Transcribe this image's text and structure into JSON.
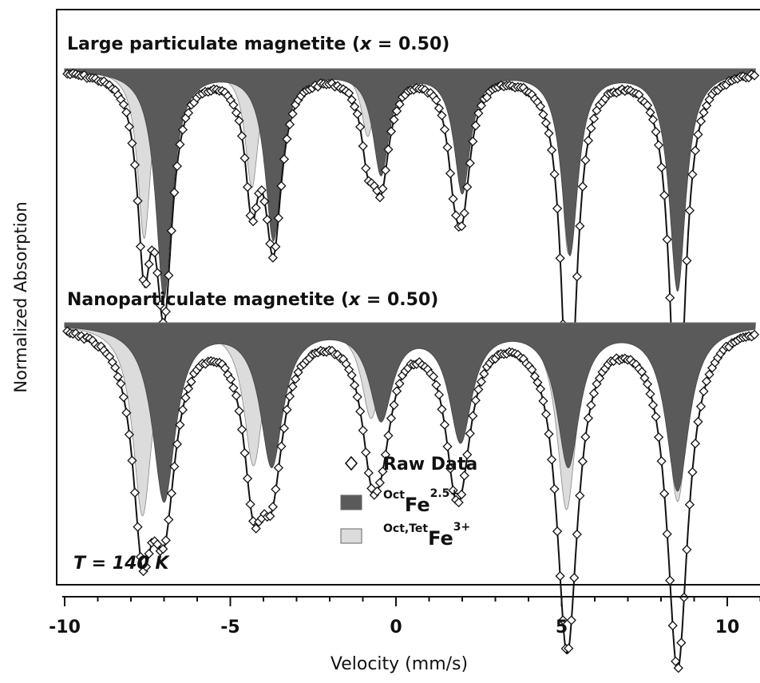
{
  "chart_data": {
    "type": "line",
    "xlabel": "Velocity (mm/s)",
    "ylabel": "Normalized Absorption",
    "xlim": [
      -10,
      11
    ],
    "x_ticks": [
      "-10",
      "-5",
      "0",
      "5",
      "10"
    ],
    "x_tick_values": [
      -10,
      -5,
      0,
      5,
      10
    ],
    "grid": false,
    "legend_position": "bottom-center",
    "annotation": {
      "prefix": "T",
      "text": " = 140 K"
    },
    "legend": [
      {
        "name": "Raw Data",
        "marker": "diamond"
      },
      {
        "name_sup": "Oct",
        "name_main": "Fe",
        "name_sup2": "2.5+",
        "color": "#5a5a5a"
      },
      {
        "name_sup": "Oct,Tet",
        "name_main": "Fe",
        "name_sup2": "3+",
        "color": "#dcdcdc"
      }
    ],
    "colors": {
      "oct": "#5a5a5a",
      "octtet": "#dcdcdc",
      "envelope": "#9a9a9a",
      "fit": "#111111"
    },
    "panels": [
      {
        "title_pre": "Large particulate magnetite (",
        "title_var": "x",
        "title_post": " = 0.50)",
        "octtet_lines": [
          {
            "v": -7.6,
            "depth": 0.46
          },
          {
            "v": -4.35,
            "depth": 0.32
          },
          {
            "v": -0.85,
            "depth": 0.18
          },
          {
            "v": 1.75,
            "depth": 0.16
          },
          {
            "v": 5.2,
            "depth": 0.5
          },
          {
            "v": 8.5,
            "depth": 0.45
          }
        ],
        "oct_lines": [
          {
            "v": -7.0,
            "depth": 0.62
          },
          {
            "v": -3.7,
            "depth": 0.46
          },
          {
            "v": -0.45,
            "depth": 0.28
          },
          {
            "v": 2.0,
            "depth": 0.33
          },
          {
            "v": 5.25,
            "depth": 0.5
          },
          {
            "v": 8.5,
            "depth": 0.6
          }
        ],
        "octtet_width": 0.24,
        "oct_width": 0.3
      },
      {
        "title_pre": "Nanoparticulate magnetite (",
        "title_var": "x",
        "title_post": " = 0.50)",
        "octtet_lines": [
          {
            "v": -7.65,
            "depth": 0.52
          },
          {
            "v": -4.3,
            "depth": 0.38
          },
          {
            "v": -0.75,
            "depth": 0.25
          },
          {
            "v": 1.75,
            "depth": 0.18
          },
          {
            "v": 5.15,
            "depth": 0.5
          },
          {
            "v": 8.5,
            "depth": 0.48
          }
        ],
        "oct_lines": [
          {
            "v": -7.0,
            "depth": 0.48
          },
          {
            "v": -3.75,
            "depth": 0.38
          },
          {
            "v": -0.45,
            "depth": 0.25
          },
          {
            "v": 1.95,
            "depth": 0.31
          },
          {
            "v": 5.2,
            "depth": 0.38
          },
          {
            "v": 8.5,
            "depth": 0.45
          }
        ],
        "octtet_width": 0.35,
        "oct_width": 0.42
      }
    ]
  }
}
